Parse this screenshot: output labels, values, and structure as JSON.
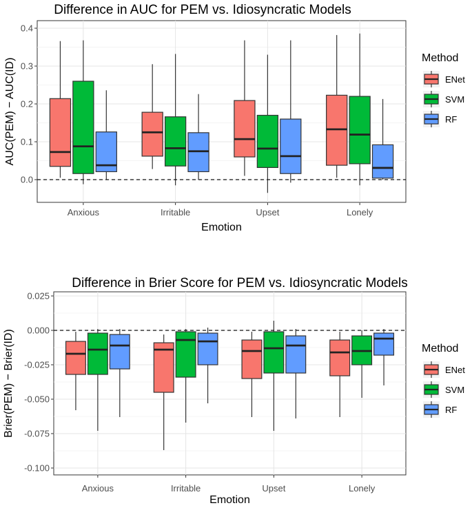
{
  "chart_data": [
    {
      "type": "box",
      "title": "Difference in AUC for PEM vs. Idiosyncratic Models",
      "xlabel": "Emotion",
      "ylabel": "AUC(PEM) − AUC(ID)",
      "categories": [
        "Anxious",
        "Irritable",
        "Upset",
        "Lonely"
      ],
      "ylim": [
        -0.06,
        0.42
      ],
      "yticks": [
        0.0,
        0.1,
        0.2,
        0.3,
        0.4
      ],
      "ytick_labels": [
        "0.0",
        "0.1",
        "0.2",
        "0.3",
        "0.4"
      ],
      "reference_line": 0.0,
      "grid": true,
      "legend": {
        "title": "Method",
        "position": "right"
      },
      "series": [
        {
          "name": "ENet",
          "color": "#F8766D",
          "boxes": [
            {
              "whisker_low": 0.005,
              "q1": 0.035,
              "median": 0.073,
              "q3": 0.214,
              "whisker_high": 0.366
            },
            {
              "whisker_low": 0.028,
              "q1": 0.062,
              "median": 0.125,
              "q3": 0.178,
              "whisker_high": 0.305
            },
            {
              "whisker_low": 0.01,
              "q1": 0.06,
              "median": 0.107,
              "q3": 0.209,
              "whisker_high": 0.368
            },
            {
              "whisker_low": 0.005,
              "q1": 0.038,
              "median": 0.133,
              "q3": 0.223,
              "whisker_high": 0.382
            }
          ]
        },
        {
          "name": "SVM",
          "color": "#00BA38",
          "boxes": [
            {
              "whisker_low": -0.012,
              "q1": 0.016,
              "median": 0.088,
              "q3": 0.26,
              "whisker_high": 0.368
            },
            {
              "whisker_low": -0.015,
              "q1": 0.036,
              "median": 0.083,
              "q3": 0.166,
              "whisker_high": 0.332
            },
            {
              "whisker_low": -0.035,
              "q1": 0.032,
              "median": 0.082,
              "q3": 0.17,
              "whisker_high": 0.33
            },
            {
              "whisker_low": -0.015,
              "q1": 0.042,
              "median": 0.119,
              "q3": 0.22,
              "whisker_high": 0.386
            }
          ]
        },
        {
          "name": "RF",
          "color": "#619CFF",
          "boxes": [
            {
              "whisker_low": 0.0,
              "q1": 0.021,
              "median": 0.038,
              "q3": 0.126,
              "whisker_high": 0.236
            },
            {
              "whisker_low": 0.0,
              "q1": 0.021,
              "median": 0.075,
              "q3": 0.124,
              "whisker_high": 0.226
            },
            {
              "whisker_low": -0.008,
              "q1": 0.016,
              "median": 0.062,
              "q3": 0.16,
              "whisker_high": 0.368
            },
            {
              "whisker_low": 0.0,
              "q1": 0.004,
              "median": 0.031,
              "q3": 0.092,
              "whisker_high": 0.213
            }
          ]
        }
      ]
    },
    {
      "type": "box",
      "title": "Difference in Brier Score for PEM vs. Idiosyncratic Models",
      "xlabel": "Emotion",
      "ylabel": "Brier(PEM) − Brier(ID)",
      "categories": [
        "Anxious",
        "Irritable",
        "Upset",
        "Lonely"
      ],
      "ylim": [
        -0.105,
        0.028
      ],
      "yticks": [
        0.025,
        0.0,
        -0.025,
        -0.05,
        -0.075,
        -0.1
      ],
      "ytick_labels": [
        "0.025",
        "0.000",
        "-0.025",
        "-0.050",
        "-0.075",
        "-0.100"
      ],
      "reference_line": 0.0,
      "grid": true,
      "legend": {
        "title": "Method",
        "position": "right"
      },
      "series": [
        {
          "name": "ENet",
          "color": "#F8766D",
          "boxes": [
            {
              "whisker_low": -0.058,
              "q1": -0.032,
              "median": -0.017,
              "q3": -0.008,
              "whisker_high": -0.001
            },
            {
              "whisker_low": -0.087,
              "q1": -0.045,
              "median": -0.014,
              "q3": -0.009,
              "whisker_high": -0.003
            },
            {
              "whisker_low": -0.063,
              "q1": -0.035,
              "median": -0.015,
              "q3": -0.007,
              "whisker_high": -0.001
            },
            {
              "whisker_low": -0.063,
              "q1": -0.033,
              "median": -0.016,
              "q3": -0.007,
              "whisker_high": -0.001
            }
          ]
        },
        {
          "name": "SVM",
          "color": "#00BA38",
          "boxes": [
            {
              "whisker_low": -0.073,
              "q1": -0.032,
              "median": -0.014,
              "q3": -0.002,
              "whisker_high": 0.001
            },
            {
              "whisker_low": -0.067,
              "q1": -0.034,
              "median": -0.007,
              "q3": -0.001,
              "whisker_high": 0.001
            },
            {
              "whisker_low": -0.073,
              "q1": -0.031,
              "median": -0.013,
              "q3": -0.001,
              "whisker_high": 0.007
            },
            {
              "whisker_low": -0.049,
              "q1": -0.025,
              "median": -0.015,
              "q3": -0.004,
              "whisker_high": 0.0
            }
          ]
        },
        {
          "name": "RF",
          "color": "#619CFF",
          "boxes": [
            {
              "whisker_low": -0.063,
              "q1": -0.028,
              "median": -0.011,
              "q3": -0.003,
              "whisker_high": 0.001
            },
            {
              "whisker_low": -0.053,
              "q1": -0.025,
              "median": -0.008,
              "q3": -0.002,
              "whisker_high": 0.002
            },
            {
              "whisker_low": -0.064,
              "q1": -0.031,
              "median": -0.011,
              "q3": -0.004,
              "whisker_high": 0.001
            },
            {
              "whisker_low": -0.04,
              "q1": -0.018,
              "median": -0.006,
              "q3": -0.002,
              "whisker_high": 0.001
            }
          ]
        }
      ]
    }
  ]
}
